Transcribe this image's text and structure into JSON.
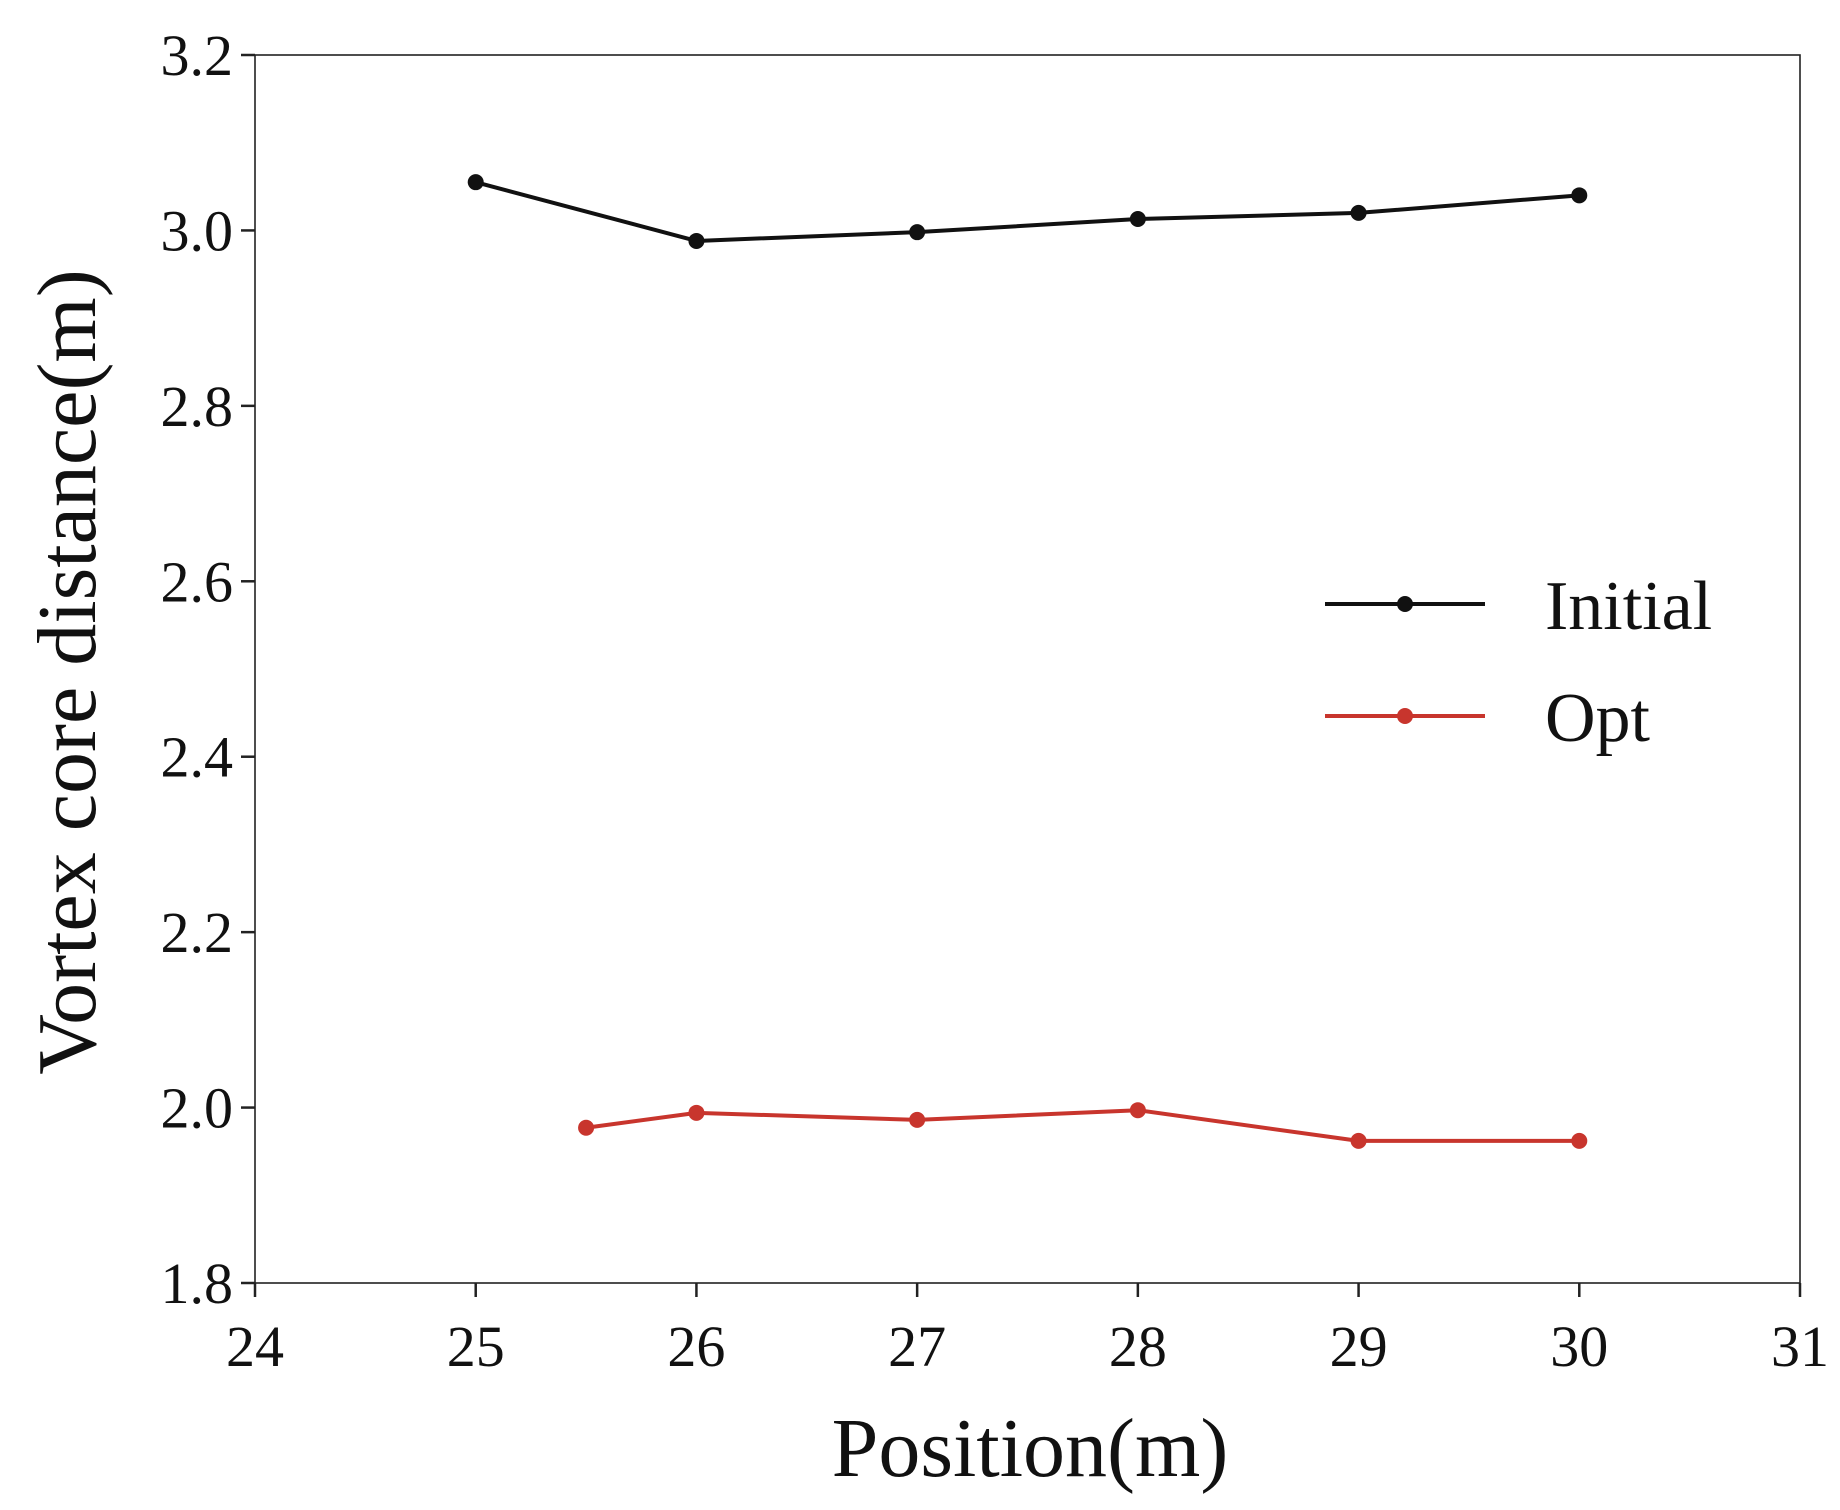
{
  "chart_data": {
    "type": "line",
    "title": "",
    "xlabel": "Position(m)",
    "ylabel": "Vortex core distance(m)",
    "xlim": [
      24,
      31
    ],
    "ylim": [
      1.8,
      3.2
    ],
    "xticks": [
      "24",
      "25",
      "26",
      "27",
      "28",
      "29",
      "30",
      "31"
    ],
    "yticks": [
      "1.8",
      "2.0",
      "2.2",
      "2.4",
      "2.6",
      "2.8",
      "3.0",
      "3.2"
    ],
    "grid": false,
    "legend_position": "center-right",
    "series": [
      {
        "name": "Initial",
        "color": "#111111",
        "x": [
          25,
          26,
          27,
          28,
          29,
          30
        ],
        "y": [
          3.055,
          2.988,
          2.998,
          3.013,
          3.02,
          3.04
        ]
      },
      {
        "name": "Opt",
        "color": "#c8352d",
        "x": [
          25.5,
          26,
          27,
          28,
          29,
          30
        ],
        "y": [
          1.977,
          1.994,
          1.986,
          1.997,
          1.962,
          1.962
        ]
      }
    ]
  }
}
